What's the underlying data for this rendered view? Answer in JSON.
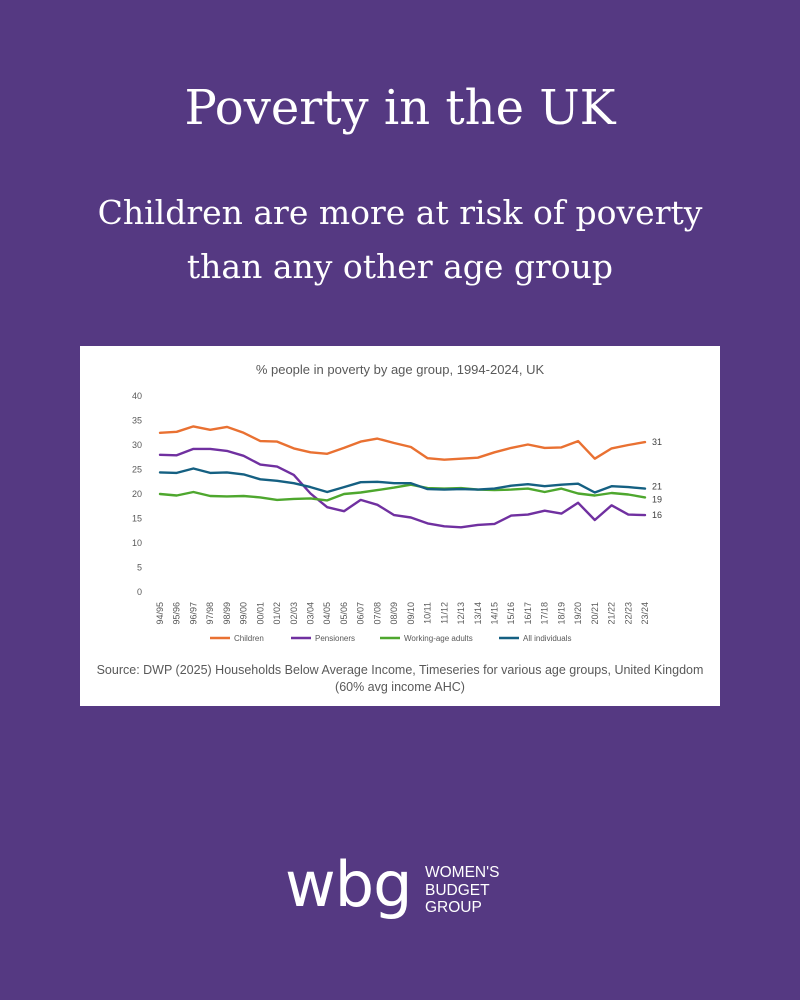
{
  "headline": "Poverty in the UK",
  "subheadline": "Children are more at risk of poverty than any other age group",
  "colors": {
    "background": "#553982",
    "children": "#E97132",
    "pensioners": "#7030A0",
    "working_age": "#4EA72E",
    "all_individuals": "#156082"
  },
  "chart_data": {
    "type": "line",
    "title": "% people in poverty by age group, 1994-2024, UK",
    "xlabel": "",
    "ylabel": "",
    "ylim": [
      0,
      40
    ],
    "yticks": [
      0,
      5,
      10,
      15,
      20,
      25,
      30,
      35,
      40
    ],
    "grid": false,
    "legend_position": "bottom",
    "x": [
      "94/95",
      "95/96",
      "96/97",
      "97/98",
      "98/99",
      "99/00",
      "00/01",
      "01/02",
      "02/03",
      "03/04",
      "04/05",
      "05/06",
      "06/07",
      "07/08",
      "08/09",
      "09/10",
      "10/11",
      "11/12",
      "12/13",
      "13/14",
      "14/15",
      "15/16",
      "16/17",
      "17/18",
      "18/19",
      "19/20",
      "20/21",
      "21/22",
      "22/23",
      "23/24"
    ],
    "series": [
      {
        "name": "Children",
        "color": "#E97132",
        "values": [
          32.5,
          32.7,
          33.8,
          33.1,
          33.7,
          32.5,
          30.8,
          30.7,
          29.3,
          28.5,
          28.2,
          29.4,
          30.7,
          31.3,
          30.4,
          29.6,
          27.3,
          27.0,
          27.2,
          27.4,
          28.5,
          29.4,
          30.1,
          29.4,
          29.5,
          30.8,
          27.2,
          29.3,
          30.0,
          30.6
        ],
        "end_label": "31"
      },
      {
        "name": "Pensioners",
        "color": "#7030A0",
        "values": [
          28.0,
          27.9,
          29.2,
          29.2,
          28.8,
          27.8,
          26.0,
          25.6,
          23.9,
          20.1,
          17.3,
          16.5,
          18.8,
          17.8,
          15.7,
          15.2,
          14.0,
          13.4,
          13.2,
          13.7,
          13.9,
          15.6,
          15.8,
          16.6,
          16.0,
          18.2,
          14.7,
          17.7,
          15.8,
          15.7
        ],
        "end_label": "16"
      },
      {
        "name": "Working-age adults",
        "color": "#4EA72E",
        "values": [
          20.0,
          19.7,
          20.4,
          19.6,
          19.5,
          19.6,
          19.3,
          18.8,
          19.0,
          19.1,
          18.7,
          20.0,
          20.3,
          20.8,
          21.3,
          21.9,
          21.2,
          21.1,
          21.2,
          20.9,
          20.8,
          20.9,
          21.1,
          20.4,
          21.1,
          20.1,
          19.7,
          20.2,
          19.9,
          19.3
        ],
        "end_label": "19"
      },
      {
        "name": "All individuals",
        "color": "#156082",
        "values": [
          24.4,
          24.3,
          25.2,
          24.3,
          24.4,
          24.0,
          23.0,
          22.7,
          22.2,
          21.4,
          20.4,
          21.4,
          22.4,
          22.5,
          22.2,
          22.2,
          21.0,
          20.9,
          21.0,
          20.9,
          21.1,
          21.7,
          22.0,
          21.6,
          21.9,
          22.1,
          20.3,
          21.6,
          21.4,
          21.1
        ],
        "end_label": "21"
      }
    ]
  },
  "source": "Source: DWP (2025) Households Below Average Income, Timeseries for various age groups, United Kingdom (60% avg income AHC)",
  "logo": {
    "mark": "wbg",
    "line1": "WOMEN'S",
    "line2": "BUDGET",
    "line3": "GROUP"
  }
}
